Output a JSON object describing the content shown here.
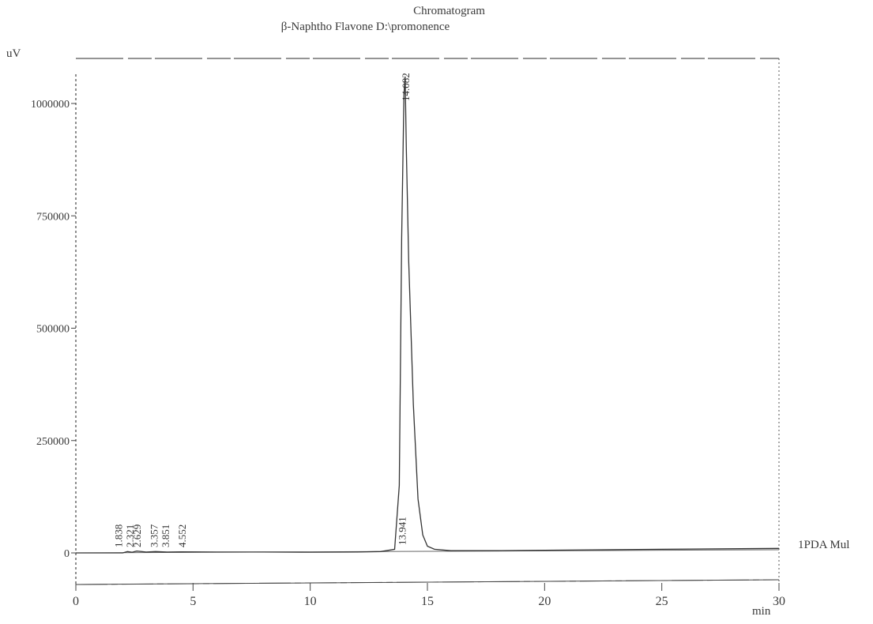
{
  "chart_data": {
    "type": "line",
    "title": "Chromatogram",
    "subtitle": "β-Naphtho Flavone D:\\promonence",
    "y_unit": "uV",
    "x_unit": "min",
    "trace_label": "1PDA Mul",
    "xlim": [
      0,
      30
    ],
    "ylim": [
      -75000,
      1100000
    ],
    "x_ticks": [
      0,
      5,
      10,
      15,
      20,
      25,
      30
    ],
    "y_ticks": [
      0,
      250000,
      500000,
      750000,
      1000000
    ],
    "x_tick_labels": [
      "0",
      "5",
      "10",
      "15",
      "20",
      "25",
      "30"
    ],
    "y_tick_labels": [
      "0",
      "250000",
      "500000",
      "750000",
      "1000000"
    ],
    "series": [
      {
        "x": [
          0,
          2.0,
          2.2,
          2.4,
          2.6,
          3.0,
          3.4,
          3.9,
          4.5,
          6,
          8,
          10,
          12,
          13.0,
          13.6,
          13.8,
          13.9,
          14.0,
          14.05,
          14.1,
          14.2,
          14.4,
          14.6,
          14.8,
          15.0,
          15.3,
          16,
          18,
          20,
          25,
          30
        ],
        "values": [
          0,
          0,
          3000,
          1500,
          4000,
          2000,
          3000,
          2000,
          2500,
          2000,
          2000,
          1500,
          2000,
          3000,
          8000,
          150000,
          700000,
          1020000,
          1060000,
          900000,
          650000,
          330000,
          120000,
          40000,
          15000,
          8000,
          5000,
          5000,
          6000,
          8000,
          10000
        ]
      }
    ],
    "peak_labels": [
      {
        "x": 1.838,
        "text": "1.838"
      },
      {
        "x": 2.321,
        "text": "2.321"
      },
      {
        "x": 2.629,
        "text": "2.629"
      },
      {
        "x": 3.357,
        "text": "3.357"
      },
      {
        "x": 3.851,
        "text": "3.851"
      },
      {
        "x": 4.552,
        "text": "4.552"
      },
      {
        "x": 13.941,
        "text": "13.941"
      },
      {
        "x": 14.082,
        "text": "14.082"
      }
    ]
  }
}
